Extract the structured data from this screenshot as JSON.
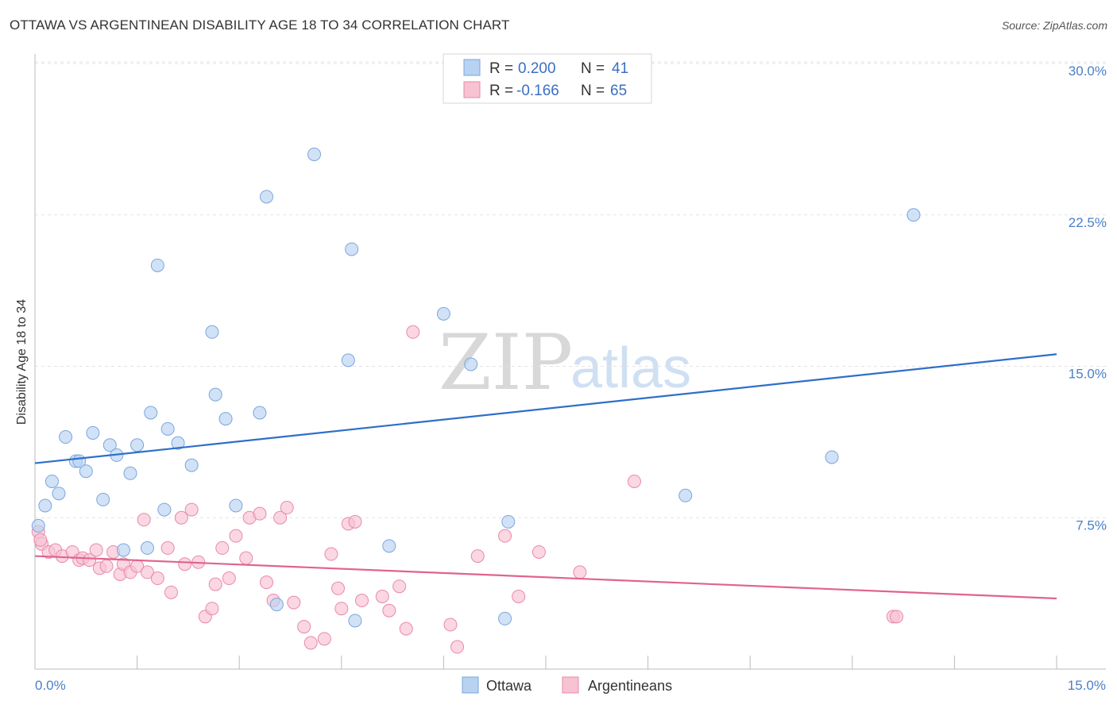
{
  "title": "OTTAWA VS ARGENTINEAN DISABILITY AGE 18 TO 34 CORRELATION CHART",
  "source": "Source: ZipAtlas.com",
  "watermark": {
    "zip": "ZIP",
    "atlas": "atlas"
  },
  "colors": {
    "ottawa_fill": "#b8d2f2",
    "ottawa_stroke": "#7aa6dc",
    "ottawa_line": "#2e6fc9",
    "arg_fill": "#f7c2d2",
    "arg_stroke": "#e88aa7",
    "arg_line": "#e0638f"
  },
  "legend": {
    "ottawa": {
      "r_label": "R =",
      "r_value": "0.200",
      "n_label": "N =",
      "n_value": "41"
    },
    "argentineans": {
      "r_label": "R =",
      "r_value": "-0.166",
      "n_label": "N =",
      "n_value": "65"
    }
  },
  "chart_data": {
    "type": "scatter",
    "title": "OTTAWA VS ARGENTINEAN DISABILITY AGE 18 TO 34 CORRELATION CHART",
    "xlabel": "",
    "ylabel": "Disability Age 18 to 34",
    "xlim": [
      0,
      15
    ],
    "ylim": [
      0,
      30
    ],
    "x_tick_labels": [
      "0.0%",
      "15.0%"
    ],
    "y_tick_labels": [
      "7.5%",
      "15.0%",
      "22.5%",
      "30.0%"
    ],
    "y_ticks": [
      7.5,
      15,
      22.5,
      30
    ],
    "series": [
      {
        "name": "Ottawa",
        "trend": {
          "x": [
            0,
            15
          ],
          "y": [
            10.2,
            15.6
          ]
        },
        "points": [
          [
            0.05,
            7.1
          ],
          [
            0.15,
            8.1
          ],
          [
            0.25,
            9.3
          ],
          [
            0.35,
            8.7
          ],
          [
            0.45,
            11.5
          ],
          [
            0.6,
            10.3
          ],
          [
            0.65,
            10.3
          ],
          [
            0.75,
            9.8
          ],
          [
            0.85,
            11.7
          ],
          [
            1.0,
            8.4
          ],
          [
            1.1,
            11.1
          ],
          [
            1.2,
            10.6
          ],
          [
            1.3,
            5.9
          ],
          [
            1.4,
            9.7
          ],
          [
            1.5,
            11.1
          ],
          [
            1.65,
            6.0
          ],
          [
            1.7,
            12.7
          ],
          [
            1.8,
            20.0
          ],
          [
            1.9,
            7.9
          ],
          [
            1.95,
            11.9
          ],
          [
            2.1,
            11.2
          ],
          [
            2.3,
            10.1
          ],
          [
            2.6,
            16.7
          ],
          [
            2.65,
            13.6
          ],
          [
            2.8,
            12.4
          ],
          [
            2.95,
            8.1
          ],
          [
            3.3,
            12.7
          ],
          [
            3.4,
            23.4
          ],
          [
            3.55,
            3.2
          ],
          [
            4.1,
            25.5
          ],
          [
            4.6,
            15.3
          ],
          [
            4.65,
            20.8
          ],
          [
            4.7,
            2.4
          ],
          [
            5.2,
            6.1
          ],
          [
            6.0,
            17.6
          ],
          [
            6.4,
            15.1
          ],
          [
            6.9,
            2.5
          ],
          [
            6.95,
            7.3
          ],
          [
            9.55,
            8.6
          ],
          [
            11.7,
            10.5
          ],
          [
            12.9,
            22.5
          ]
        ]
      },
      {
        "name": "Argentineans",
        "trend": {
          "x": [
            0,
            15
          ],
          "y": [
            5.6,
            3.5
          ]
        },
        "points": [
          [
            0.05,
            6.8
          ],
          [
            0.1,
            6.2
          ],
          [
            0.2,
            5.8
          ],
          [
            0.3,
            5.9
          ],
          [
            0.4,
            5.6
          ],
          [
            0.55,
            5.8
          ],
          [
            0.65,
            5.4
          ],
          [
            0.7,
            5.5
          ],
          [
            0.8,
            5.4
          ],
          [
            0.9,
            5.9
          ],
          [
            0.95,
            5.0
          ],
          [
            1.05,
            5.1
          ],
          [
            1.15,
            5.8
          ],
          [
            1.25,
            4.7
          ],
          [
            1.3,
            5.2
          ],
          [
            1.4,
            4.8
          ],
          [
            1.5,
            5.1
          ],
          [
            1.6,
            7.4
          ],
          [
            1.65,
            4.8
          ],
          [
            1.8,
            4.5
          ],
          [
            1.95,
            6.0
          ],
          [
            2.0,
            3.8
          ],
          [
            2.15,
            7.5
          ],
          [
            2.2,
            5.2
          ],
          [
            2.3,
            7.9
          ],
          [
            2.4,
            5.3
          ],
          [
            2.5,
            2.6
          ],
          [
            2.6,
            3.0
          ],
          [
            2.65,
            4.2
          ],
          [
            2.75,
            6.0
          ],
          [
            2.85,
            4.5
          ],
          [
            2.95,
            6.6
          ],
          [
            3.1,
            5.5
          ],
          [
            3.15,
            7.5
          ],
          [
            3.3,
            7.7
          ],
          [
            3.4,
            4.3
          ],
          [
            3.5,
            3.4
          ],
          [
            3.6,
            7.5
          ],
          [
            3.7,
            8.0
          ],
          [
            3.8,
            3.3
          ],
          [
            3.95,
            2.1
          ],
          [
            4.05,
            1.3
          ],
          [
            4.25,
            1.5
          ],
          [
            4.35,
            5.7
          ],
          [
            4.45,
            4.0
          ],
          [
            4.5,
            3.0
          ],
          [
            4.6,
            7.2
          ],
          [
            4.7,
            7.3
          ],
          [
            4.8,
            3.4
          ],
          [
            5.1,
            3.6
          ],
          [
            5.2,
            2.9
          ],
          [
            5.35,
            4.1
          ],
          [
            5.45,
            2.0
          ],
          [
            5.55,
            16.7
          ],
          [
            6.1,
            2.2
          ],
          [
            6.2,
            1.1
          ],
          [
            6.5,
            5.6
          ],
          [
            6.9,
            6.6
          ],
          [
            7.1,
            3.6
          ],
          [
            7.4,
            5.8
          ],
          [
            8.0,
            4.8
          ],
          [
            8.8,
            9.3
          ],
          [
            12.6,
            2.6
          ],
          [
            12.65,
            2.6
          ],
          [
            0.08,
            6.4
          ]
        ]
      }
    ]
  },
  "bottom_legend": {
    "ottawa": "Ottawa",
    "argentineans": "Argentineans"
  }
}
